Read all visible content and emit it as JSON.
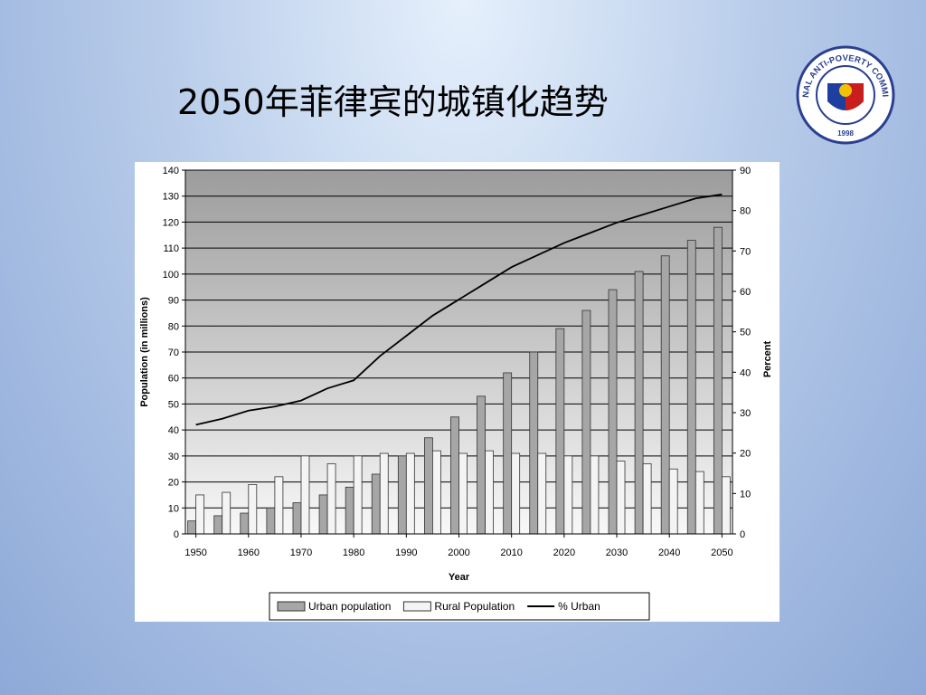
{
  "title": "2050年菲律宾的城镇化趋势",
  "logo": {
    "name": "NATIONAL ANTI-POVERTY COMMISSION",
    "year": "1998"
  },
  "chart_data": {
    "type": "bar",
    "x": [
      1950,
      1955,
      1960,
      1965,
      1970,
      1975,
      1980,
      1985,
      1990,
      1995,
      2000,
      2005,
      2010,
      2015,
      2020,
      2025,
      2030,
      2035,
      2040,
      2045,
      2050
    ],
    "xlim": [
      1948,
      2052
    ],
    "xticks": [
      1950,
      1960,
      1970,
      1980,
      1990,
      2000,
      2010,
      2020,
      2030,
      2040,
      2050
    ],
    "x_label": "Year",
    "y_label": "Population (in millions)",
    "y2_label": "Percent",
    "ylim": [
      0,
      140
    ],
    "yticks": [
      0,
      10,
      20,
      30,
      40,
      50,
      60,
      70,
      80,
      90,
      100,
      110,
      120,
      130,
      140
    ],
    "y2lim": [
      0,
      90
    ],
    "y2ticks": [
      0,
      10,
      20,
      30,
      40,
      50,
      60,
      70,
      80,
      90
    ],
    "grid": true,
    "series": [
      {
        "name": "Urban population",
        "color": "#a6a6a6",
        "values": [
          5,
          7,
          8,
          10,
          12,
          15,
          18,
          23,
          30,
          37,
          45,
          53,
          62,
          70,
          79,
          86,
          94,
          101,
          107,
          113,
          118
        ]
      },
      {
        "name": "Rural Population",
        "color": "#f4f4f4",
        "values": [
          15,
          16,
          19,
          22,
          30,
          27,
          30,
          31,
          31,
          32,
          31,
          32,
          31,
          31,
          30,
          30,
          28,
          27,
          25,
          24,
          22
        ]
      },
      {
        "name": "% Urban",
        "color": "#000000",
        "type": "line",
        "axis": "y2",
        "values": [
          27,
          28.5,
          30.5,
          31.5,
          33,
          36,
          38,
          44,
          49,
          54,
          58,
          62,
          66,
          69,
          72,
          74.5,
          77,
          79,
          81,
          83,
          84
        ]
      }
    ]
  }
}
